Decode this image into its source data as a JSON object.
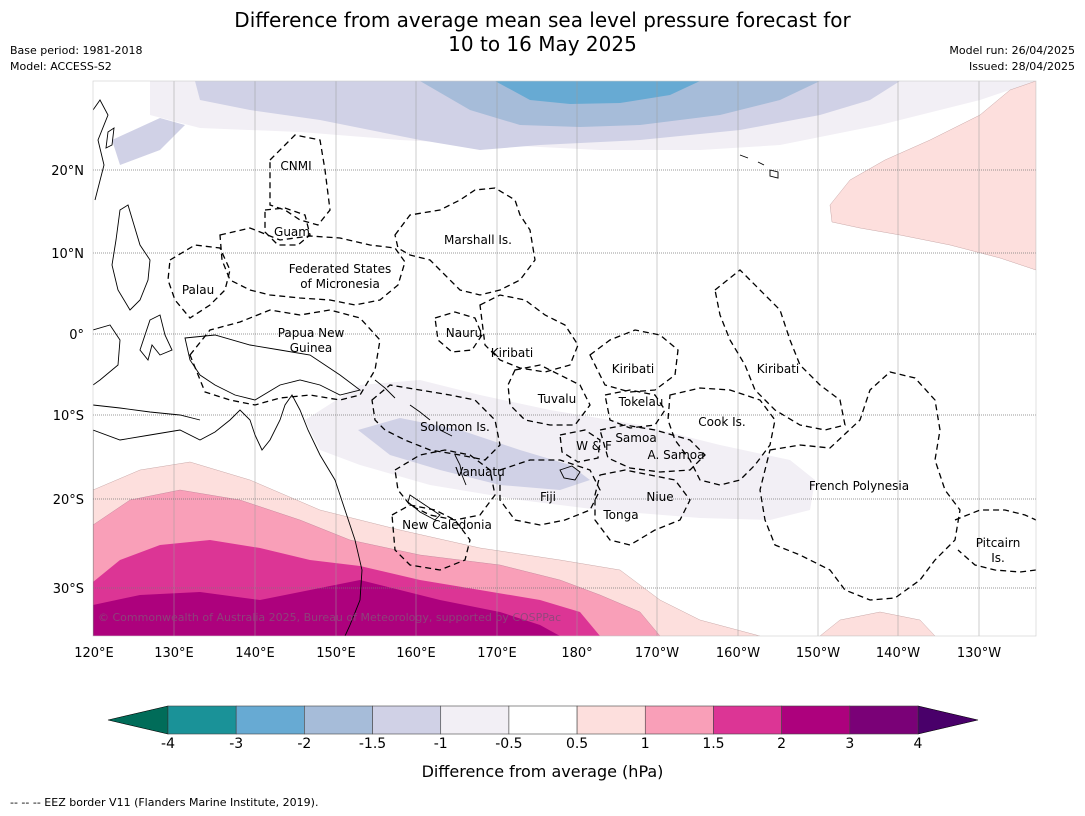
{
  "header": {
    "title_line1": "Difference from average mean sea level pressure forecast for",
    "title_line2": "10 to 16 May 2025",
    "base_period": "Base period: 1981-2018",
    "model": "Model: ACCESS-S2",
    "model_run": "Model run: 26/04/2025",
    "issued": "Issued: 28/04/2025"
  },
  "map": {
    "lat_labels": [
      "20°N",
      "10°N",
      "0°",
      "10°S",
      "20°S",
      "30°S"
    ],
    "lon_labels": [
      "120°E",
      "130°E",
      "140°E",
      "150°E",
      "160°E",
      "170°E",
      "180°",
      "170°W",
      "160°W",
      "150°W",
      "140°W",
      "130°W"
    ],
    "regions": [
      "CNMI",
      "Guam",
      "Marshall Is.",
      "Federated States",
      "of Micronesia",
      "Palau",
      "Papua New",
      "Guinea",
      "Nauru",
      "Kiribati",
      "Kiribati",
      "Kiribati",
      "Tuvalu",
      "Tokelau",
      "Solomon Is.",
      "W & F",
      "Samoa",
      "A. Samoa",
      "Cook Is.",
      "Vanuatu",
      "Fiji",
      "Niue",
      "Tonga",
      "French Polynesia",
      "New Caledonia",
      "Pitcairn",
      "Is."
    ],
    "copyright": "© Commonwealth of Australia 2025, Bureau of Meteorology, supported by COSPPac"
  },
  "colorbar": {
    "title": "Difference from average (hPa)",
    "ticks": [
      "-4",
      "-3",
      "-2",
      "-1.5",
      "-1",
      "-0.5",
      "0.5",
      "1",
      "1.5",
      "2",
      "3",
      "4"
    ],
    "colors": [
      "#1a9298",
      "#67aad3",
      "#a6bcd9",
      "#d0d1e6",
      "#f2eff5",
      "#ffffff",
      "#fddfdd",
      "#f99fb8",
      "#dc3595",
      "#ad017d",
      "#7a0177"
    ],
    "under_color": "#016c59",
    "over_color": "#49006a"
  },
  "footer": {
    "legend_text": "--  --  -- EEZ border V11 (Flanders Marine Institute, 2019)."
  }
}
